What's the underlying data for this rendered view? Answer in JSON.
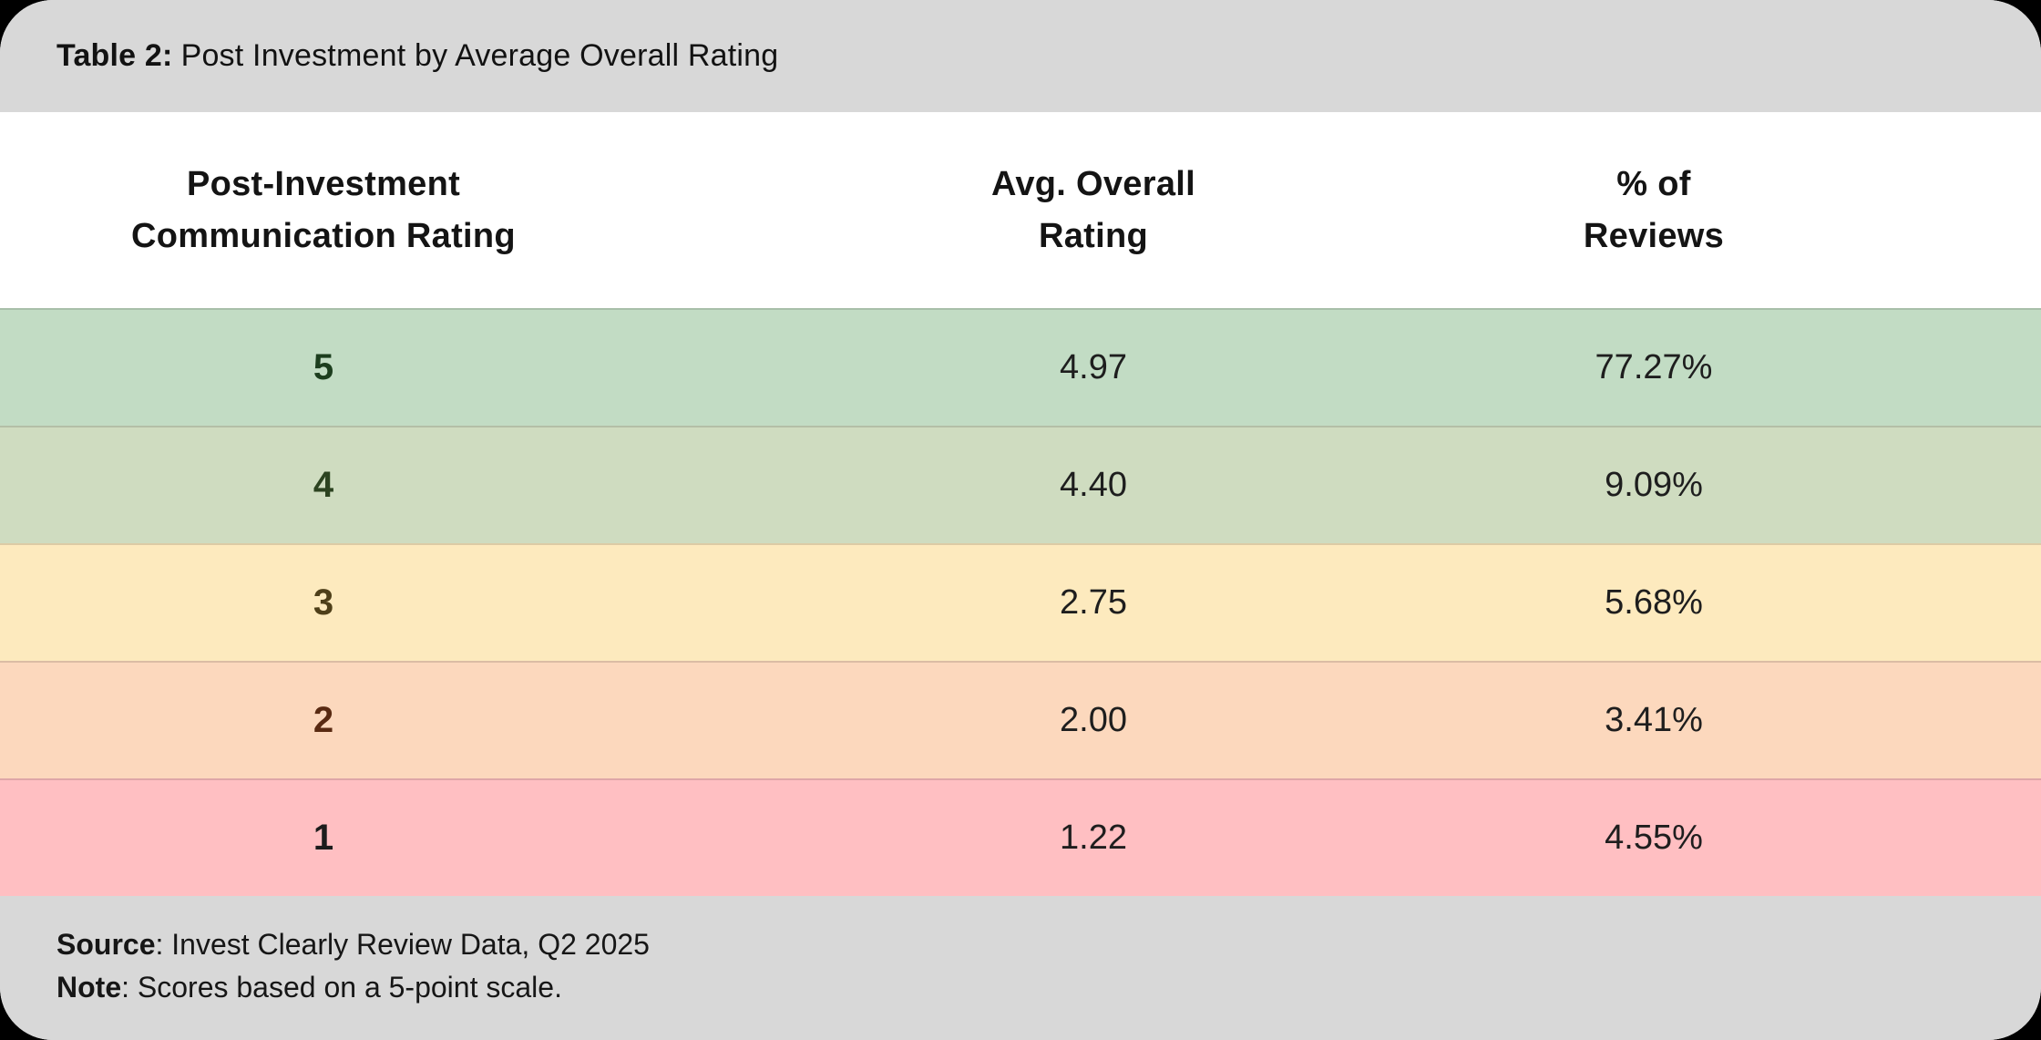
{
  "title": {
    "prefix": "Table 2:",
    "text": "Post Investment by Average Overall Rating"
  },
  "table": {
    "headers": {
      "col1": "Post-Investment\nCommunication Rating",
      "col2": "Avg. Overall\nRating",
      "col3": "% of\nReviews"
    },
    "rows": [
      {
        "rating": "5",
        "avg": "4.97",
        "pct": "77.27%",
        "bg": "#c2dcc4",
        "rating_color": "#1c3e1e"
      },
      {
        "rating": "4",
        "avg": "4.40",
        "pct": "9.09%",
        "bg": "#cfdcc0",
        "rating_color": "#2c4320"
      },
      {
        "rating": "3",
        "avg": "2.75",
        "pct": "5.68%",
        "bg": "#fdeabe",
        "rating_color": "#4e3f19"
      },
      {
        "rating": "2",
        "avg": "2.00",
        "pct": "3.41%",
        "bg": "#fcd8bd",
        "rating_color": "#592a12"
      },
      {
        "rating": "1",
        "avg": "1.22",
        "pct": "4.55%",
        "bg": "#ffbfc2",
        "rating_color": "#1c1c1c"
      }
    ]
  },
  "footer": {
    "source_label": "Source",
    "source_text": ": Invest Clearly Review Data, Q2 2025",
    "note_label": "Note",
    "note_text": ": Scores based on a 5-point scale."
  },
  "colors": {
    "bar_gray": "#d8d8d8",
    "header_bg": "#ffffff",
    "outer_bg": "#000000"
  },
  "chart_data": {
    "type": "table",
    "title": "Table 2: Post Investment by Average Overall Rating",
    "columns": [
      "Post-Investment Communication Rating",
      "Avg. Overall Rating",
      "% of Reviews"
    ],
    "rows": [
      [
        5,
        4.97,
        "77.27%"
      ],
      [
        4,
        4.4,
        "9.09%"
      ],
      [
        3,
        2.75,
        "5.68%"
      ],
      [
        2,
        2.0,
        "3.41%"
      ],
      [
        1,
        1.22,
        "4.55%"
      ]
    ],
    "row_colors": [
      "#c2dcc4",
      "#cfdcc0",
      "#fdeabe",
      "#fcd8bd",
      "#ffbfc2"
    ],
    "source": "Invest Clearly Review Data, Q2 2025",
    "note": "Scores based on a 5-point scale."
  }
}
